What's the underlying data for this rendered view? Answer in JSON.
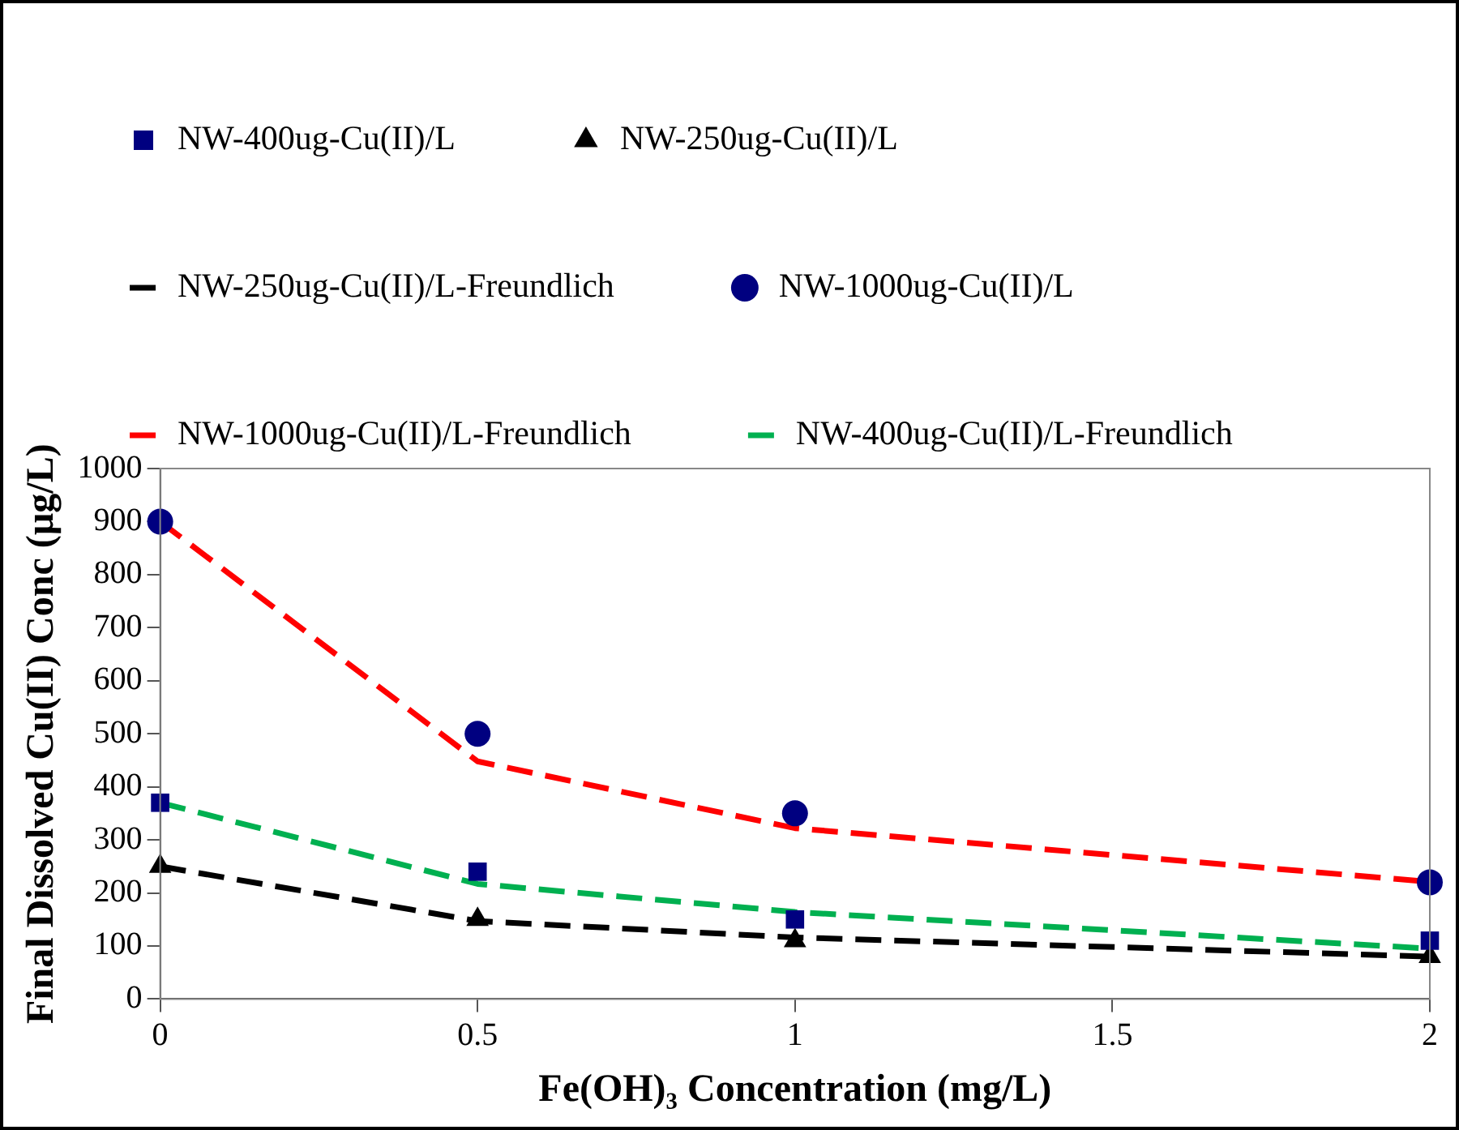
{
  "chart_data": {
    "type": "scatter",
    "xlabel": "Fe(OH)₃ Concentration (mg/L)",
    "ylabel": "Final Dissolved Cu(II) Conc (µg/L)",
    "x": [
      0,
      0.5,
      1,
      2
    ],
    "xlim": [
      0,
      2
    ],
    "xticks": [
      0,
      0.5,
      1,
      1.5,
      2
    ],
    "ylim": [
      0,
      1000
    ],
    "yticks": [
      0,
      100,
      200,
      300,
      400,
      500,
      600,
      700,
      800,
      900,
      1000
    ],
    "grid": false,
    "legend": "top",
    "series": [
      {
        "name": "NW-400ug-Cu(II)/L",
        "marker": "square",
        "color": "#000080",
        "values": [
          370,
          240,
          150,
          110
        ]
      },
      {
        "name": "NW-250ug-Cu(II)/L",
        "marker": "triangle",
        "color": "#000000",
        "values": [
          250,
          150,
          110,
          80
        ]
      },
      {
        "name": "NW-250ug-Cu(II)/L-Freundlich",
        "type": "line",
        "marker": "none",
        "line_style": "dashed",
        "color": "#000000",
        "values": [
          250,
          147,
          116,
          80
        ]
      },
      {
        "name": "NW-1000ug-Cu(II)/L",
        "marker": "circle",
        "color": "#000080",
        "values": [
          900,
          500,
          350,
          220
        ]
      },
      {
        "name": "NW-1000ug-Cu(II)/L-Freundlich",
        "type": "line",
        "marker": "none",
        "line_style": "dashed",
        "color": "#ff0000",
        "values": [
          900,
          448,
          322,
          221
        ]
      },
      {
        "name": "NW-400ug-Cu(II)/L-Freundlich",
        "type": "line",
        "marker": "none",
        "line_style": "dashed",
        "color": "#00b050",
        "values": [
          370,
          217,
          164,
          95
        ]
      }
    ]
  }
}
